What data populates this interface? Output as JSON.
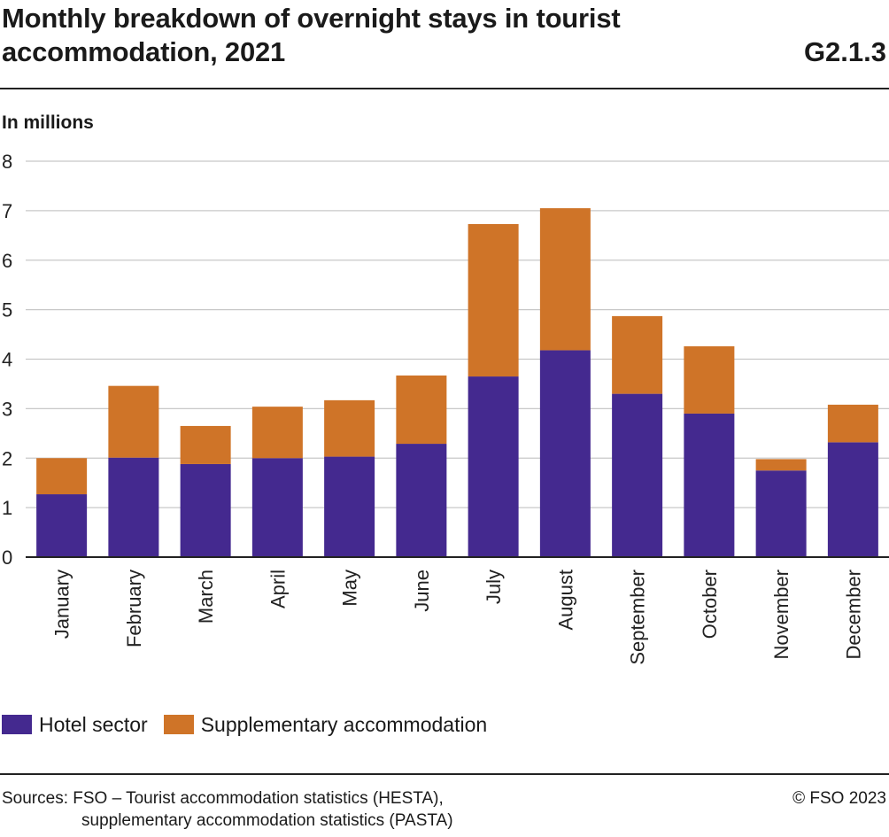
{
  "header": {
    "title": "Monthly breakdown of overnight stays in tourist accommodation, 2021",
    "code": "G2.1.3"
  },
  "unit_label": "In millions",
  "chart_data": {
    "type": "bar",
    "stacked": true,
    "title": "Monthly breakdown of overnight stays in tourist accommodation, 2021",
    "ylabel": "In millions",
    "ylim": [
      0,
      8
    ],
    "yticks": [
      0,
      1,
      2,
      3,
      4,
      5,
      6,
      7,
      8
    ],
    "grid": true,
    "categories": [
      "January",
      "February",
      "March",
      "April",
      "May",
      "June",
      "July",
      "August",
      "September",
      "October",
      "November",
      "December"
    ],
    "series": [
      {
        "name": "Hotel sector",
        "color": "#44298f",
        "values": [
          1.27,
          2.01,
          1.88,
          2.0,
          2.03,
          2.29,
          3.65,
          4.18,
          3.3,
          2.9,
          1.75,
          2.32
        ]
      },
      {
        "name": "Supplementary accommodation",
        "color": "#cf7428",
        "values": [
          0.73,
          1.45,
          0.77,
          1.04,
          1.14,
          1.38,
          3.08,
          2.87,
          1.57,
          1.36,
          0.23,
          0.76
        ]
      }
    ],
    "legend_position": "bottom-left"
  },
  "footer": {
    "sources_line1": "Sources: FSO – Tourist accommodation statistics (HESTA),",
    "sources_line2": "supplementary accommodation statistics (PASTA)",
    "copyright": "© FSO 2023"
  }
}
